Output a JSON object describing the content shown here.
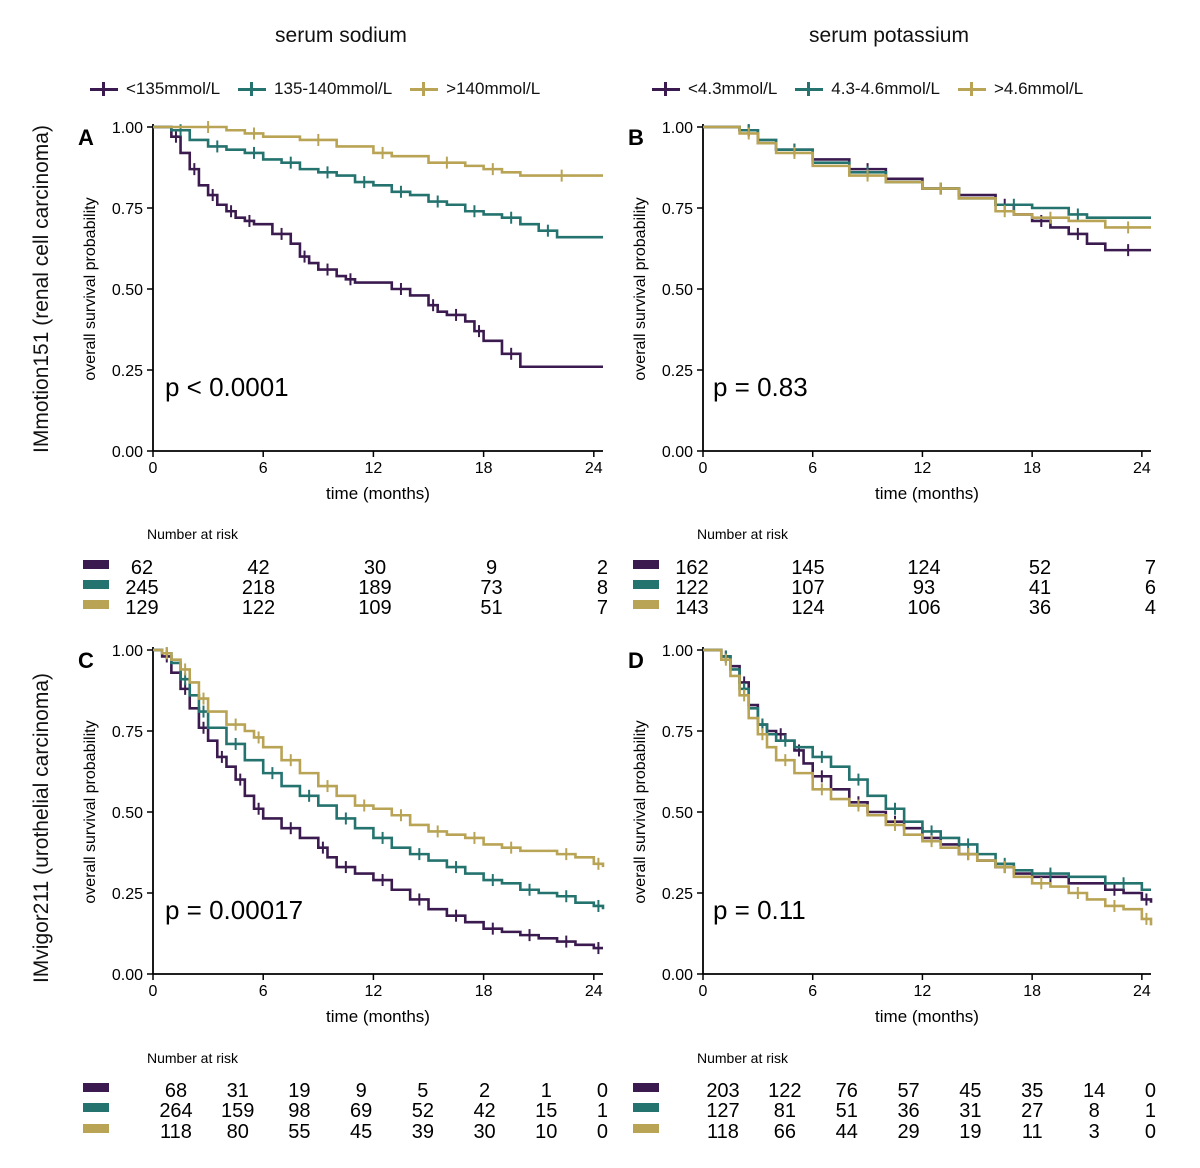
{
  "columns": {
    "left": "serum sodium",
    "right": "serum potassium"
  },
  "rows": {
    "top": "IMmotion151 (renal cell carcinoma)",
    "bottom": "IMvigor211 (urothelial carcinoma)"
  },
  "legends": {
    "sodium": [
      "<135mmol/L",
      "135-140mmol/L",
      ">140mmol/L"
    ],
    "potassium": [
      "<4.3mmol/L",
      "4.3-4.6mmol/L",
      ">4.6mmol/L"
    ]
  },
  "colors": {
    "low": "#3b1b4f",
    "mid": "#24736f",
    "high": "#b9a456"
  },
  "risk_title": "Number at risk",
  "chart_data": [
    {
      "panel": "A",
      "type": "line",
      "subtype": "kaplan-meier",
      "xlabel": "time (months)",
      "ylabel": "overall survival probability",
      "xlim": [
        0,
        24.5
      ],
      "ylim": [
        0,
        1
      ],
      "xticks": [
        "0",
        "6",
        "12",
        "18",
        "24"
      ],
      "yticks": [
        "0.00",
        "0.25",
        "0.50",
        "0.75",
        "1.00"
      ],
      "pvalue": "p < 0.0001",
      "series": [
        {
          "name": "<135mmol/L",
          "x": [
            0,
            1,
            1.5,
            2,
            2.5,
            3,
            3.5,
            4,
            4.5,
            5,
            5.5,
            6.5,
            7.5,
            8,
            8.5,
            9,
            10,
            10.5,
            11,
            13,
            14,
            15,
            15.5,
            16,
            17,
            17.5,
            18,
            19,
            20,
            24.5
          ],
          "y": [
            1,
            0.97,
            0.92,
            0.87,
            0.82,
            0.79,
            0.76,
            0.74,
            0.72,
            0.71,
            0.7,
            0.67,
            0.64,
            0.6,
            0.58,
            0.56,
            0.54,
            0.53,
            0.52,
            0.5,
            0.48,
            0.45,
            0.43,
            0.42,
            0.4,
            0.37,
            0.34,
            0.3,
            0.26,
            0.26
          ]
        },
        {
          "name": "135-140mmol/L",
          "x": [
            0,
            1,
            2,
            3,
            4,
            5,
            6,
            7,
            8,
            9,
            10,
            11,
            12,
            13,
            14,
            15,
            16,
            17,
            18,
            19,
            20,
            21,
            22,
            24.5
          ],
          "y": [
            1,
            0.99,
            0.96,
            0.94,
            0.93,
            0.92,
            0.9,
            0.89,
            0.87,
            0.86,
            0.85,
            0.83,
            0.82,
            0.8,
            0.79,
            0.77,
            0.76,
            0.74,
            0.73,
            0.72,
            0.7,
            0.68,
            0.66,
            0.66
          ]
        },
        {
          "name": ">140mmol/L",
          "x": [
            0,
            2,
            4,
            5,
            6,
            8,
            10,
            12,
            13,
            15,
            17,
            18,
            19,
            20,
            24.5
          ],
          "y": [
            1,
            1,
            0.99,
            0.98,
            0.97,
            0.96,
            0.94,
            0.92,
            0.91,
            0.89,
            0.88,
            0.87,
            0.86,
            0.85,
            0.85
          ]
        }
      ],
      "risk_table": {
        "times": [
          "0",
          "6",
          "12",
          "18",
          "24"
        ],
        "rows": [
          [
            "62",
            "42",
            "30",
            "9",
            "2"
          ],
          [
            "245",
            "218",
            "189",
            "73",
            "8"
          ],
          [
            "129",
            "122",
            "109",
            "51",
            "7"
          ]
        ]
      }
    },
    {
      "panel": "B",
      "type": "line",
      "subtype": "kaplan-meier",
      "xlabel": "time (months)",
      "ylabel": "overall survival probability",
      "xlim": [
        0,
        24.5
      ],
      "ylim": [
        0,
        1
      ],
      "xticks": [
        "0",
        "6",
        "12",
        "18",
        "24"
      ],
      "yticks": [
        "0.00",
        "0.25",
        "0.50",
        "0.75",
        "1.00"
      ],
      "pvalue": "p = 0.83",
      "series": [
        {
          "name": "<4.3mmol/L",
          "x": [
            0,
            2,
            3,
            4,
            6,
            8,
            10,
            12,
            14,
            16,
            17,
            18,
            19,
            20,
            21,
            22,
            24.5
          ],
          "y": [
            1,
            0.99,
            0.95,
            0.93,
            0.9,
            0.87,
            0.84,
            0.81,
            0.79,
            0.76,
            0.73,
            0.71,
            0.69,
            0.67,
            0.64,
            0.62,
            0.62
          ]
        },
        {
          "name": "4.3-4.6mmol/L",
          "x": [
            0,
            2,
            3,
            4,
            6,
            8,
            10,
            12,
            14,
            16,
            18,
            20,
            21,
            24.5
          ],
          "y": [
            1,
            0.99,
            0.96,
            0.93,
            0.89,
            0.86,
            0.83,
            0.81,
            0.78,
            0.76,
            0.75,
            0.73,
            0.72,
            0.72
          ]
        },
        {
          "name": ">4.6mmol/L",
          "x": [
            0,
            2,
            3,
            4,
            6,
            8,
            10,
            12,
            14,
            16,
            17,
            18,
            20,
            22,
            24.5
          ],
          "y": [
            1,
            0.98,
            0.95,
            0.92,
            0.88,
            0.85,
            0.83,
            0.81,
            0.78,
            0.74,
            0.73,
            0.72,
            0.71,
            0.69,
            0.69
          ]
        }
      ],
      "risk_table": {
        "times": [
          "0",
          "6",
          "12",
          "18",
          "24"
        ],
        "rows": [
          [
            "162",
            "145",
            "124",
            "52",
            "7"
          ],
          [
            "122",
            "107",
            "93",
            "41",
            "6"
          ],
          [
            "143",
            "124",
            "106",
            "36",
            "4"
          ]
        ]
      }
    },
    {
      "panel": "C",
      "type": "line",
      "subtype": "kaplan-meier",
      "xlabel": "time (months)",
      "ylabel": "overall survival probability",
      "xlim": [
        0,
        24.5
      ],
      "ylim": [
        0,
        1
      ],
      "xticks": [
        "0",
        "6",
        "12",
        "18",
        "24"
      ],
      "yticks": [
        "0.00",
        "0.25",
        "0.50",
        "0.75",
        "1.00"
      ],
      "pvalue": "p = 0.00017",
      "series": [
        {
          "name": "<135mmol/L",
          "x": [
            0,
            0.5,
            1,
            1.5,
            2,
            2.5,
            3,
            3.5,
            4,
            4.5,
            5,
            5.5,
            6,
            7,
            8,
            9,
            9.5,
            10,
            11,
            12,
            13,
            14,
            15,
            16,
            17,
            18,
            19,
            20,
            21,
            22,
            23,
            24,
            24.5
          ],
          "y": [
            1,
            0.98,
            0.93,
            0.88,
            0.82,
            0.76,
            0.72,
            0.67,
            0.64,
            0.6,
            0.55,
            0.51,
            0.48,
            0.45,
            0.42,
            0.39,
            0.36,
            0.33,
            0.31,
            0.29,
            0.26,
            0.23,
            0.2,
            0.18,
            0.16,
            0.14,
            0.13,
            0.12,
            0.11,
            0.1,
            0.09,
            0.08,
            0.08
          ]
        },
        {
          "name": "135-140mmol/L",
          "x": [
            0,
            0.5,
            1,
            1.5,
            2,
            2.5,
            3,
            4,
            5,
            6,
            7,
            8,
            9,
            10,
            11,
            12,
            13,
            14,
            15,
            16,
            17,
            18,
            19,
            20,
            21,
            22,
            23,
            24,
            24.5
          ],
          "y": [
            1,
            0.99,
            0.96,
            0.91,
            0.86,
            0.81,
            0.76,
            0.71,
            0.66,
            0.62,
            0.58,
            0.55,
            0.52,
            0.48,
            0.45,
            0.42,
            0.39,
            0.37,
            0.35,
            0.33,
            0.31,
            0.29,
            0.28,
            0.26,
            0.25,
            0.24,
            0.22,
            0.21,
            0.2
          ]
        },
        {
          "name": ">140mmol/L",
          "x": [
            0,
            0.5,
            1,
            1.5,
            2,
            2.5,
            3,
            4,
            5,
            5.5,
            6,
            7,
            8,
            9,
            10,
            11,
            12,
            13,
            14,
            15,
            16,
            17,
            18,
            19,
            20,
            22,
            23,
            24,
            24.5
          ],
          "y": [
            1,
            0.99,
            0.97,
            0.94,
            0.9,
            0.85,
            0.81,
            0.77,
            0.75,
            0.73,
            0.7,
            0.66,
            0.62,
            0.58,
            0.55,
            0.52,
            0.51,
            0.49,
            0.46,
            0.44,
            0.43,
            0.42,
            0.4,
            0.39,
            0.38,
            0.37,
            0.36,
            0.34,
            0.33
          ]
        }
      ],
      "risk_table": {
        "times": [
          "0",
          "3.5",
          "7",
          "10.5",
          "14",
          "17.5",
          "21",
          "24.5"
        ],
        "rows": [
          [
            "68",
            "31",
            "19",
            "9",
            "5",
            "2",
            "1",
            "0"
          ],
          [
            "264",
            "159",
            "98",
            "69",
            "52",
            "42",
            "15",
            "1"
          ],
          [
            "118",
            "80",
            "55",
            "45",
            "39",
            "30",
            "10",
            "0"
          ]
        ]
      }
    },
    {
      "panel": "D",
      "type": "line",
      "subtype": "kaplan-meier",
      "xlabel": "time (months)",
      "ylabel": "overall survival probability",
      "xlim": [
        0,
        24.5
      ],
      "ylim": [
        0,
        1
      ],
      "xticks": [
        "0",
        "6",
        "12",
        "18",
        "24"
      ],
      "yticks": [
        "0.00",
        "0.25",
        "0.50",
        "0.75",
        "1.00"
      ],
      "pvalue": "p = 0.11",
      "series": [
        {
          "name": "<4.3mmol/L",
          "x": [
            0,
            1,
            1.5,
            2,
            2.5,
            3,
            3.5,
            4,
            4.5,
            5,
            5.5,
            6,
            7,
            8,
            9,
            10,
            11,
            12,
            13,
            14,
            15,
            16,
            17,
            18,
            20,
            22,
            23,
            24,
            24.5
          ],
          "y": [
            1,
            0.98,
            0.95,
            0.9,
            0.83,
            0.77,
            0.75,
            0.74,
            0.72,
            0.69,
            0.65,
            0.61,
            0.57,
            0.53,
            0.5,
            0.47,
            0.45,
            0.42,
            0.4,
            0.37,
            0.35,
            0.33,
            0.31,
            0.3,
            0.28,
            0.26,
            0.25,
            0.23,
            0.22
          ]
        },
        {
          "name": "4.3-4.6mmol/L",
          "x": [
            0,
            1,
            1.5,
            2,
            2.5,
            3,
            3.5,
            4,
            5,
            6,
            7,
            8,
            9,
            10,
            11,
            12,
            13,
            14,
            15,
            16,
            17,
            18,
            20,
            22,
            24,
            24.5
          ],
          "y": [
            1,
            0.98,
            0.94,
            0.88,
            0.82,
            0.77,
            0.74,
            0.72,
            0.7,
            0.67,
            0.64,
            0.6,
            0.55,
            0.51,
            0.47,
            0.44,
            0.42,
            0.4,
            0.37,
            0.34,
            0.32,
            0.31,
            0.3,
            0.28,
            0.26,
            0.26
          ]
        },
        {
          "name": ">4.6mmol/L",
          "x": [
            0,
            1,
            1.5,
            2,
            2.5,
            3,
            3.5,
            4,
            5,
            6,
            7,
            8,
            9,
            10,
            11,
            12,
            13,
            14,
            15,
            16,
            17,
            18,
            19,
            20,
            21,
            22,
            23,
            24,
            24.5
          ],
          "y": [
            1,
            0.97,
            0.92,
            0.86,
            0.79,
            0.74,
            0.7,
            0.66,
            0.62,
            0.57,
            0.54,
            0.52,
            0.49,
            0.46,
            0.43,
            0.41,
            0.39,
            0.37,
            0.35,
            0.33,
            0.3,
            0.28,
            0.27,
            0.25,
            0.23,
            0.21,
            0.2,
            0.17,
            0.15
          ]
        }
      ],
      "risk_table": {
        "times": [
          "0",
          "3.5",
          "7",
          "10.5",
          "14",
          "17.5",
          "21",
          "24.5"
        ],
        "rows": [
          [
            "203",
            "122",
            "76",
            "57",
            "45",
            "35",
            "14",
            "0"
          ],
          [
            "127",
            "81",
            "51",
            "36",
            "31",
            "27",
            "8",
            "1"
          ],
          [
            "118",
            "66",
            "44",
            "29",
            "19",
            "11",
            "3",
            "0"
          ]
        ]
      }
    }
  ]
}
